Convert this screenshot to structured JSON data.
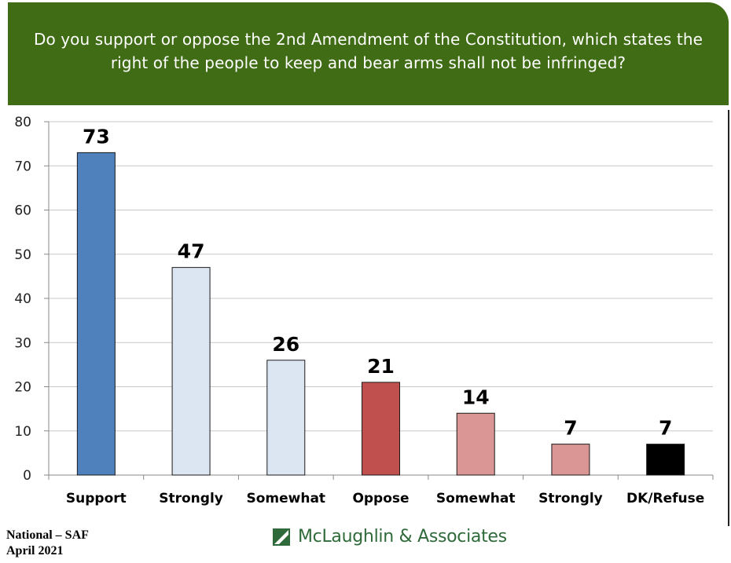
{
  "header": {
    "question": "Do you support or oppose the 2nd Amendment of the Constitution, which states the right of the people to keep and bear arms shall not be infringed?"
  },
  "footer": {
    "line1": "National – SAF",
    "line2": "April 2021",
    "brand": "McLaughlin & Associates"
  },
  "colors": {
    "header_bg": "#3f6c14",
    "support": "#4f81bd",
    "support_sub": "#dce6f2",
    "oppose": "#c0504d",
    "oppose_sub": "#d99694",
    "dk": "#000000",
    "brand_green": "#2f6a3a"
  },
  "chart_data": {
    "type": "bar",
    "categories": [
      "Support",
      "Strongly",
      "Somewhat",
      "Oppose",
      "Somewhat",
      "Strongly",
      "DK/Refuse"
    ],
    "values": [
      73,
      47,
      26,
      21,
      14,
      7,
      7
    ],
    "data_labels": [
      "73",
      "47",
      "26",
      "21",
      "14",
      "7",
      "7"
    ],
    "bar_colors": [
      "#4f81bd",
      "#dce6f2",
      "#dce6f2",
      "#c0504d",
      "#d99694",
      "#d99694",
      "#000000"
    ],
    "ylim": [
      0,
      80
    ],
    "yticks": [
      0,
      10,
      20,
      30,
      40,
      50,
      60,
      70,
      80
    ],
    "grid": true,
    "legend": "none"
  }
}
